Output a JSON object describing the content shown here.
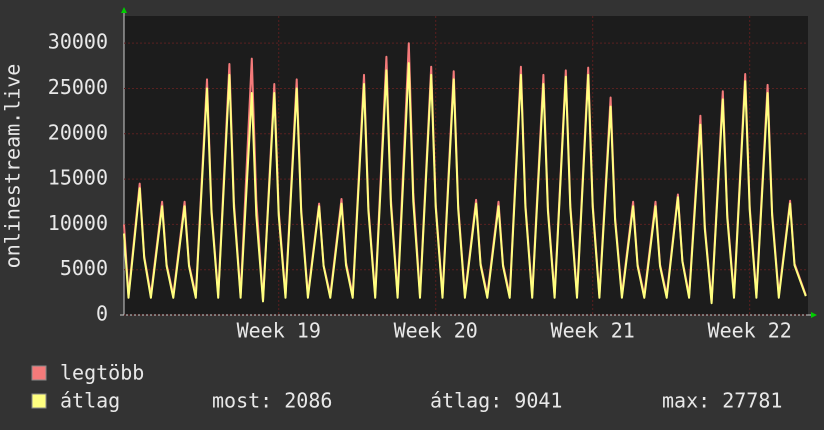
{
  "chart_data": {
    "type": "line",
    "ylabel": "onlinestream.live",
    "x": [
      0,
      0.2,
      0.7,
      0.9,
      1.2,
      1.7,
      1.9,
      2.2,
      2.7,
      2.9,
      3.2,
      3.7,
      3.9,
      4.2,
      4.7,
      4.9,
      5.2,
      5.7,
      5.9,
      6.2,
      6.7,
      6.9,
      7.2,
      7.7,
      7.9,
      8.2,
      8.7,
      8.9,
      9.2,
      9.7,
      9.9,
      10.2,
      10.7,
      10.9,
      11.2,
      11.7,
      11.9,
      12.2,
      12.7,
      12.9,
      13.2,
      13.7,
      13.9,
      14.2,
      14.7,
      14.9,
      15.2,
      15.7,
      15.9,
      16.2,
      16.7,
      16.9,
      17.2,
      17.7,
      17.9,
      18.2,
      18.7,
      18.9,
      19.2,
      19.7,
      19.9,
      20.2,
      20.7,
      20.9,
      21.2,
      21.7,
      21.9,
      22.2,
      22.7,
      22.9,
      23.2,
      23.7,
      23.9,
      24.2,
      24.7,
      24.9,
      25.2,
      25.7,
      25.9,
      26.2,
      26.7,
      26.9,
      27.2,
      27.7,
      27.9,
      28.2,
      28.7,
      28.9,
      29.2,
      29.7,
      29.9,
      30.4
    ],
    "series": [
      {
        "name": "legtöbb",
        "color": "#f47a7a",
        "values": [
          10000,
          2200,
          14500,
          6500,
          2200,
          12500,
          5600,
          2200,
          12500,
          5600,
          2200,
          26000,
          11700,
          2200,
          27700,
          12500,
          2200,
          28300,
          12700,
          1600,
          25500,
          11500,
          2200,
          26000,
          11700,
          2200,
          12300,
          5500,
          2200,
          12800,
          5800,
          2200,
          26500,
          11900,
          2200,
          28500,
          12800,
          2200,
          30000,
          13500,
          2200,
          27400,
          12300,
          2200,
          26900,
          12100,
          2200,
          12700,
          5700,
          2200,
          12500,
          5600,
          2200,
          27400,
          12300,
          2200,
          26500,
          11900,
          2200,
          27000,
          12200,
          2200,
          27300,
          12300,
          2200,
          24000,
          10800,
          2200,
          12500,
          5600,
          2200,
          12500,
          5600,
          2200,
          13300,
          6000,
          2200,
          22000,
          9900,
          1500,
          24700,
          11100,
          2200,
          26600,
          12000,
          2200,
          25400,
          11400,
          2200,
          12600,
          5700,
          2200
        ]
      },
      {
        "name": "átlag",
        "color": "#ffff80",
        "values": [
          9000,
          1900,
          14000,
          6300,
          1900,
          12000,
          5400,
          1900,
          12000,
          5400,
          1900,
          25000,
          11300,
          1900,
          26500,
          11900,
          1900,
          24500,
          11000,
          1500,
          24500,
          11000,
          1900,
          25000,
          11300,
          1900,
          12000,
          5400,
          1900,
          12300,
          5500,
          1900,
          25500,
          11500,
          1900,
          27000,
          12200,
          1900,
          27800,
          12500,
          1900,
          26500,
          11900,
          1900,
          26000,
          11700,
          1900,
          12300,
          5500,
          1900,
          12000,
          5400,
          1900,
          26500,
          11900,
          1900,
          25500,
          11500,
          1900,
          26300,
          11800,
          1900,
          26500,
          11900,
          1900,
          23000,
          10400,
          1900,
          12000,
          5400,
          1900,
          12000,
          5400,
          1900,
          13000,
          5900,
          1900,
          21000,
          9500,
          1300,
          23800,
          10700,
          1900,
          25800,
          11600,
          1900,
          24500,
          11000,
          1900,
          12300,
          5500,
          2086
        ]
      }
    ],
    "xlim": [
      0,
      30.5
    ],
    "xticks": [
      {
        "value": 6.9,
        "label": "Week 19"
      },
      {
        "value": 13.9,
        "label": "Week 20"
      },
      {
        "value": 20.9,
        "label": "Week 21"
      },
      {
        "value": 27.9,
        "label": "Week 22"
      }
    ],
    "ylim": [
      0,
      33000
    ],
    "yticks": [
      0,
      5000,
      10000,
      15000,
      20000,
      25000,
      30000
    ],
    "grid": true,
    "stats": [
      "most: 2086",
      "átlag: 9041",
      "max: 27781"
    ]
  }
}
